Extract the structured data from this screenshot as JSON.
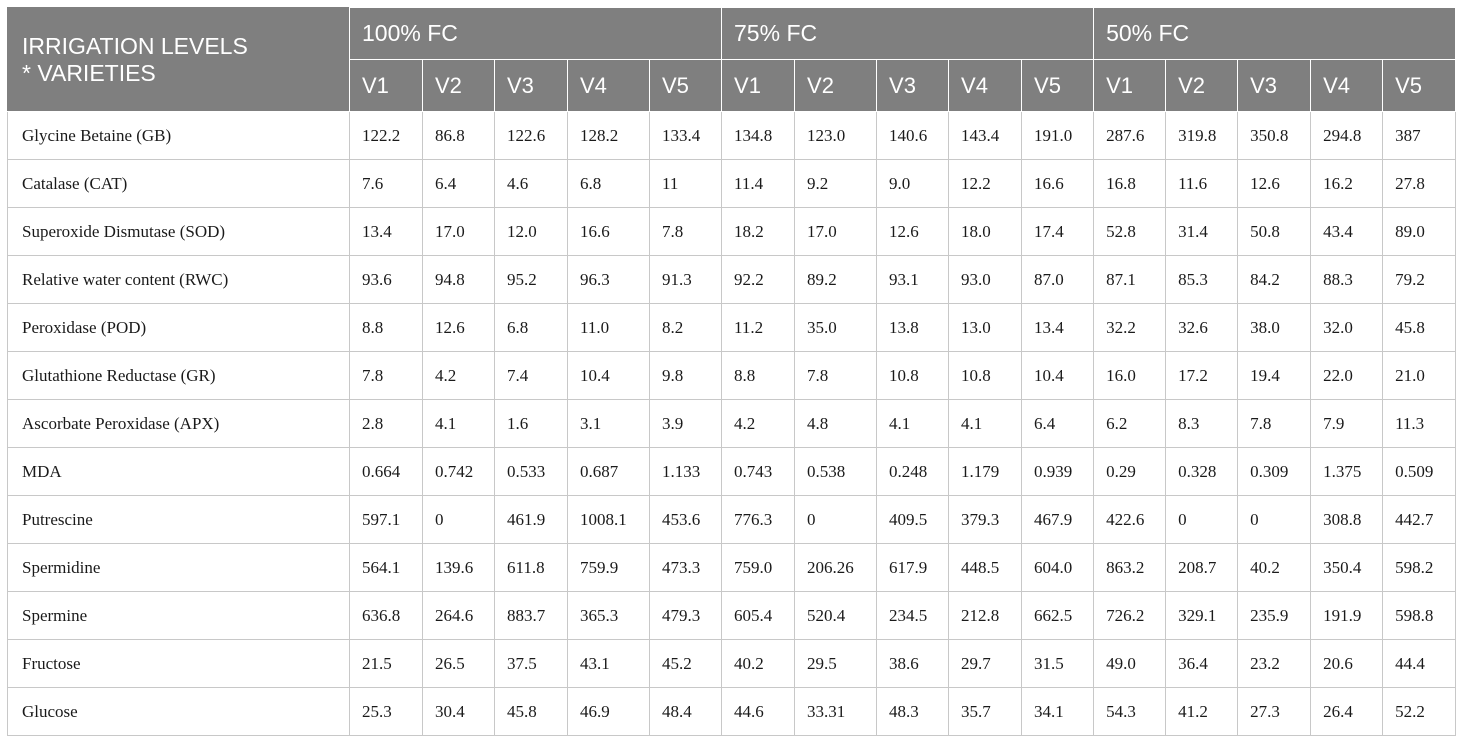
{
  "header": {
    "corner_line1": "IRRIGATION LEVELS",
    "corner_line2": "* VARIETIES",
    "groups": [
      "100% FC",
      "75% FC",
      "50% FC"
    ],
    "varieties": [
      "V1",
      "V2",
      "V3",
      "V4",
      "V5"
    ]
  },
  "rows": [
    {
      "label": "Glycine Betaine (GB)",
      "values": [
        "122.2",
        "86.8",
        "122.6",
        "128.2",
        "133.4",
        "134.8",
        "123.0",
        "140.6",
        "143.4",
        "191.0",
        "287.6",
        "319.8",
        "350.8",
        "294.8",
        "387"
      ]
    },
    {
      "label": "Catalase (CAT)",
      "values": [
        "7.6",
        "6.4",
        "4.6",
        "6.8",
        "11",
        "11.4",
        "9.2",
        "9.0",
        "12.2",
        "16.6",
        "16.8",
        "11.6",
        "12.6",
        "16.2",
        "27.8"
      ]
    },
    {
      "label": "Superoxide Dismutase (SOD)",
      "values": [
        "13.4",
        "17.0",
        "12.0",
        "16.6",
        "7.8",
        "18.2",
        "17.0",
        "12.6",
        "18.0",
        "17.4",
        "52.8",
        "31.4",
        "50.8",
        "43.4",
        "89.0"
      ]
    },
    {
      "label": "Relative water content (RWC)",
      "values": [
        "93.6",
        "94.8",
        "95.2",
        "96.3",
        "91.3",
        "92.2",
        "89.2",
        "93.1",
        "93.0",
        "87.0",
        "87.1",
        "85.3",
        "84.2",
        "88.3",
        "79.2"
      ]
    },
    {
      "label": "Peroxidase (POD)",
      "values": [
        "8.8",
        "12.6",
        "6.8",
        "11.0",
        "8.2",
        "11.2",
        "35.0",
        "13.8",
        "13.0",
        "13.4",
        "32.2",
        "32.6",
        "38.0",
        "32.0",
        "45.8"
      ]
    },
    {
      "label": "Glutathione Reductase (GR)",
      "values": [
        "7.8",
        "4.2",
        "7.4",
        "10.4",
        "9.8",
        "8.8",
        "7.8",
        "10.8",
        "10.8",
        "10.4",
        "16.0",
        "17.2",
        "19.4",
        "22.0",
        "21.0"
      ]
    },
    {
      "label": "Ascorbate Peroxidase (APX)",
      "values": [
        "2.8",
        "4.1",
        "1.6",
        "3.1",
        "3.9",
        "4.2",
        "4.8",
        "4.1",
        "4.1",
        "6.4",
        "6.2",
        "8.3",
        "7.8",
        "7.9",
        "11.3"
      ]
    },
    {
      "label": "MDA",
      "values": [
        "0.664",
        "0.742",
        "0.533",
        "0.687",
        "1.133",
        "0.743",
        "0.538",
        "0.248",
        "1.179",
        "0.939",
        "0.29",
        "0.328",
        "0.309",
        "1.375",
        "0.509"
      ]
    },
    {
      "label": "Putrescine",
      "values": [
        "597.1",
        "0",
        "461.9",
        "1008.1",
        "453.6",
        "776.3",
        "0",
        "409.5",
        "379.3",
        "467.9",
        "422.6",
        "0",
        "0",
        "308.8",
        "442.7"
      ]
    },
    {
      "label": "Spermidine",
      "values": [
        "564.1",
        "139.6",
        "611.8",
        "759.9",
        "473.3",
        "759.0",
        "206.26",
        "617.9",
        "448.5",
        "604.0",
        "863.2",
        "208.7",
        "40.2",
        "350.4",
        "598.2"
      ]
    },
    {
      "label": "Spermine",
      "values": [
        "636.8",
        "264.6",
        "883.7",
        "365.3",
        "479.3",
        "605.4",
        "520.4",
        "234.5",
        "212.8",
        "662.5",
        "726.2",
        "329.1",
        "235.9",
        "191.9",
        "598.8"
      ]
    },
    {
      "label": "Fructose",
      "values": [
        "21.5",
        "26.5",
        "37.5",
        "43.1",
        "45.2",
        "40.2",
        "29.5",
        "38.6",
        "29.7",
        "31.5",
        "49.0",
        "36.4",
        "23.2",
        "20.6",
        "44.4"
      ]
    },
    {
      "label": "Glucose",
      "values": [
        "25.3",
        "30.4",
        "45.8",
        "46.9",
        "48.4",
        "44.6",
        "33.31",
        "48.3",
        "35.7",
        "34.1",
        "54.3",
        "41.2",
        "27.3",
        "26.4",
        "52.2"
      ]
    }
  ]
}
